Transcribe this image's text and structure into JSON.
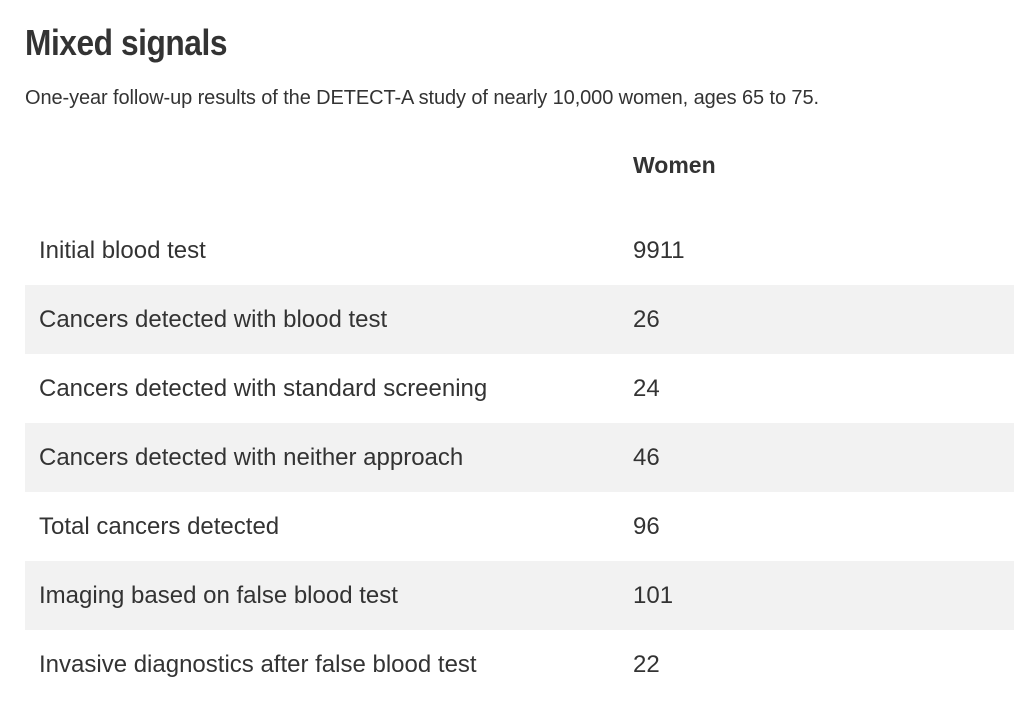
{
  "title": "Mixed signals",
  "subtitle": "One-year follow-up results of the DETECT-A study of nearly 10,000 women, ages 65 to 75.",
  "chart_data": {
    "type": "table",
    "title": "Mixed signals",
    "subtitle": "One-year follow-up results of the DETECT-A study of nearly 10,000 women, ages 65 to 75.",
    "columns": [
      "",
      "Women"
    ],
    "rows": [
      {
        "label": "Initial blood test",
        "value": "9911"
      },
      {
        "label": "Cancers detected with blood test",
        "value": "26"
      },
      {
        "label": "Cancers detected with standard screening",
        "value": "24"
      },
      {
        "label": "Cancers detected with neither approach",
        "value": "46"
      },
      {
        "label": "Total cancers detected",
        "value": "96"
      },
      {
        "label": "Imaging based on false blood test",
        "value": "101"
      },
      {
        "label": "Invasive diagnostics after false blood test",
        "value": "22"
      }
    ],
    "categories": [
      "Initial blood test",
      "Cancers detected with blood test",
      "Cancers detected with standard screening",
      "Cancers detected with neither approach",
      "Total cancers detected",
      "Imaging based on false blood test",
      "Invasive diagnostics after false blood test"
    ],
    "series": [
      {
        "name": "Women",
        "values": [
          9911,
          26,
          24,
          46,
          96,
          101,
          22
        ]
      }
    ]
  },
  "colors": {
    "text": "#333333",
    "stripe": "#f2f2f2",
    "background": "#ffffff"
  }
}
